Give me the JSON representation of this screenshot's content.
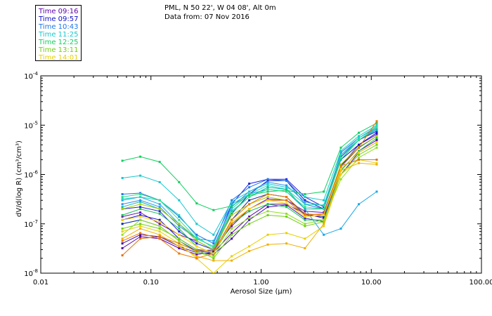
{
  "title": {
    "line1": "PML, N 50 22', W 04 08', Alt 0m",
    "line2": "Data from: 07 Nov 2016"
  },
  "legend": [
    {
      "label": "Time 09:16",
      "color": "#5b00a8"
    },
    {
      "label": "Time 09:57",
      "color": "#1010c8"
    },
    {
      "label": "Time 10:43",
      "color": "#1c78e8"
    },
    {
      "label": "Time 11:25",
      "color": "#18c8d0"
    },
    {
      "label": "Time 12:25",
      "color": "#10d060"
    },
    {
      "label": "Time 13:11",
      "color": "#70d010"
    },
    {
      "label": "Time 14:01",
      "color": "#e8d000"
    }
  ],
  "chart_data": {
    "type": "line",
    "x_scale": "log",
    "y_scale": "log",
    "xlabel": "Aerosol Size (µm)",
    "ylabel": "dV/d(log R) (cm³/cm³)",
    "xlim": [
      0.01,
      100
    ],
    "ylim": [
      1e-08,
      0.0001
    ],
    "x_ticks": [
      {
        "value": 0.01,
        "label": "0.01"
      },
      {
        "value": 0.1,
        "label": "0.10"
      },
      {
        "value": 1,
        "label": "1.00"
      },
      {
        "value": 10,
        "label": "10.00"
      },
      {
        "value": 100,
        "label": "100.00"
      }
    ],
    "y_ticks": [
      {
        "value": 1e-08,
        "base": "10",
        "exp": "-8"
      },
      {
        "value": 1e-07,
        "base": "10",
        "exp": "-7"
      },
      {
        "value": 1e-06,
        "base": "10",
        "exp": "-6"
      },
      {
        "value": 1e-05,
        "base": "10",
        "exp": "-5"
      },
      {
        "value": 0.0001,
        "base": "10",
        "exp": "-4"
      }
    ],
    "x": [
      0.055,
      0.08,
      0.12,
      0.18,
      0.26,
      0.37,
      0.54,
      0.78,
      1.15,
      1.7,
      2.5,
      3.7,
      5.3,
      7.7,
      11.2
    ],
    "series": [
      {
        "name": "Time 09:16",
        "color": "#5b00a8",
        "values": [
          3.2e-08,
          5.5e-08,
          5e-08,
          3.2e-08,
          2.4e-08,
          2.6e-08,
          6.5e-08,
          1.4e-07,
          2.5e-07,
          2.5e-07,
          1.6e-07,
          1.3e-07,
          1.2e-06,
          3e-06,
          5e-06
        ]
      },
      {
        "name": "Time 09:16",
        "color": "#6a10b8",
        "values": [
          1.4e-07,
          1.7e-07,
          1e-07,
          6e-08,
          4.5e-08,
          3e-08,
          9e-08,
          2e-07,
          3.2e-07,
          3e-07,
          1.8e-07,
          1.7e-07,
          1.5e-06,
          4e-06,
          6.5e-06
        ]
      },
      {
        "name": "Time 09:16",
        "color": "#4010b0",
        "values": [
          4e-08,
          6e-08,
          5.5e-08,
          3.5e-08,
          2.6e-08,
          2.4e-08,
          5e-08,
          1.2e-07,
          2.2e-07,
          2.4e-07,
          1.3e-07,
          1.1e-07,
          1e-06,
          2.8e-06,
          4.5e-06
        ]
      },
      {
        "name": "Time 09:57",
        "color": "#1010c8",
        "values": [
          1.2e-07,
          1.5e-07,
          1.2e-07,
          5e-08,
          3e-08,
          2.8e-08,
          1.6e-07,
          4e-07,
          7.5e-07,
          7.5e-07,
          3e-07,
          2e-07,
          2e-06,
          4e-06,
          7e-06
        ]
      },
      {
        "name": "Time 09:57",
        "color": "#2020e0",
        "values": [
          2e-07,
          2.2e-07,
          1.8e-07,
          7e-08,
          4e-08,
          3e-08,
          2.5e-07,
          6.5e-07,
          8e-07,
          8e-07,
          3.5e-07,
          2.2e-07,
          2.3e-06,
          5e-06,
          7.5e-06
        ]
      },
      {
        "name": "Time 09:57",
        "color": "#0828a8",
        "values": [
          1e-07,
          1.2e-07,
          9e-08,
          4.5e-08,
          2.8e-08,
          2.6e-08,
          1.2e-07,
          3e-07,
          4e-07,
          3.5e-07,
          1.5e-07,
          1.4e-07,
          1.5e-06,
          3.5e-06,
          6e-06
        ]
      },
      {
        "name": "Time 10:43",
        "color": "#1c78e8",
        "values": [
          4e-07,
          4.2e-07,
          3e-07,
          1.4e-07,
          6e-08,
          4e-08,
          3e-07,
          5.5e-07,
          8e-07,
          7.5e-07,
          2.5e-07,
          2e-07,
          2.8e-06,
          5.5e-06,
          9e-06
        ]
      },
      {
        "name": "Time 10:43",
        "color": "#3090f0",
        "values": [
          2.5e-07,
          3e-07,
          2.2e-07,
          9e-08,
          5e-08,
          3.5e-08,
          2.2e-07,
          4.5e-07,
          7e-07,
          6e-07,
          2.8e-07,
          2.3e-07,
          2.5e-06,
          5e-06,
          8.5e-06
        ]
      },
      {
        "name": "Time 10:43",
        "color": "#18a8e8",
        "values": [
          3e-07,
          3.5e-07,
          2.5e-07,
          1e-07,
          5e-08,
          4.5e-08,
          2.5e-07,
          4e-07,
          5e-07,
          4.5e-07,
          2e-07,
          6e-08,
          8e-08,
          2.5e-07,
          4.5e-07
        ]
      },
      {
        "name": "Time 11:25",
        "color": "#18c8d0",
        "values": [
          8.5e-07,
          9.5e-07,
          7e-07,
          3e-07,
          1e-07,
          6e-08,
          2.8e-07,
          4.5e-07,
          6.5e-07,
          5.5e-07,
          3.5e-07,
          3e-07,
          3e-06,
          6e-06,
          1e-05
        ]
      },
      {
        "name": "Time 11:25",
        "color": "#20d8c0",
        "values": [
          3.2e-07,
          3.5e-07,
          3e-07,
          1.5e-07,
          5.5e-08,
          3.2e-08,
          2e-07,
          4e-07,
          6e-07,
          5e-07,
          2.5e-07,
          2.4e-07,
          2.5e-06,
          5.5e-06,
          9.5e-06
        ]
      },
      {
        "name": "Time 11:25",
        "color": "#10b8b0",
        "values": [
          2.2e-07,
          2.8e-07,
          2e-07,
          1e-07,
          4.5e-08,
          3e-08,
          1.8e-07,
          3.5e-07,
          5.5e-07,
          5e-07,
          2e-07,
          2e-07,
          2e-06,
          5e-06,
          8e-06
        ]
      },
      {
        "name": "Time 12:25",
        "color": "#10d060",
        "values": [
          1.9e-06,
          2.3e-06,
          1.8e-06,
          7e-07,
          2.6e-07,
          1.9e-07,
          2.3e-07,
          3.8e-07,
          4.5e-07,
          4.8e-07,
          4e-07,
          4.5e-07,
          3.5e-06,
          7e-06,
          1.1e-05
        ]
      },
      {
        "name": "Time 12:25",
        "color": "#30e080",
        "values": [
          3.5e-07,
          4e-07,
          3e-07,
          1.2e-07,
          5e-08,
          3.5e-08,
          1.7e-07,
          3.5e-07,
          5e-07,
          4.5e-07,
          2.2e-07,
          2e-07,
          2.2e-06,
          5e-06,
          9e-06
        ]
      },
      {
        "name": "Time 12:25",
        "color": "#18c050",
        "values": [
          1.5e-07,
          2e-07,
          1.6e-07,
          8e-08,
          3.5e-08,
          2.5e-08,
          1e-07,
          1.8e-07,
          2.5e-07,
          2.2e-07,
          1.2e-07,
          1.2e-07,
          1.2e-06,
          3e-06,
          5.5e-06
        ]
      },
      {
        "name": "Time 13:11",
        "color": "#70d010",
        "values": [
          8e-08,
          1e-07,
          8e-08,
          5e-08,
          3e-08,
          2e-08,
          6e-08,
          1e-07,
          1.5e-07,
          1.4e-07,
          9e-08,
          1.1e-07,
          1e-06,
          2.5e-06,
          4e-06
        ]
      },
      {
        "name": "Time 13:11",
        "color": "#90e020",
        "values": [
          6e-08,
          1.2e-07,
          9e-08,
          4.5e-08,
          2.6e-08,
          2.2e-08,
          8e-08,
          1.3e-07,
          1.8e-07,
          1.6e-07,
          1e-07,
          1.2e-07,
          8e-07,
          2.2e-06,
          3.5e-06
        ]
      },
      {
        "name": "Time 13:11",
        "color": "#a8d000",
        "values": [
          2e-07,
          2.5e-07,
          2e-07,
          1e-07,
          4.5e-08,
          3e-08,
          1.5e-07,
          2.5e-07,
          3.5e-07,
          3e-07,
          1.5e-07,
          1.6e-07,
          1.6e-06,
          3.6e-06,
          6e-06
        ]
      },
      {
        "name": "Time 14:01",
        "color": "#e8d000",
        "values": [
          7e-08,
          9e-08,
          7e-08,
          4e-08,
          2e-08,
          1e-08,
          2.2e-08,
          3.5e-08,
          6e-08,
          6.5e-08,
          5e-08,
          9e-08,
          1e-06,
          2e-06,
          1.7e-06
        ]
      },
      {
        "name": "Time 14:01",
        "color": "#f0b000",
        "values": [
          5e-08,
          8e-08,
          6e-08,
          3.5e-08,
          2.2e-08,
          1.8e-08,
          1.8e-08,
          2.8e-08,
          3.8e-08,
          4e-08,
          3.2e-08,
          1e-07,
          1.2e-06,
          1.7e-06,
          1.6e-06
        ]
      },
      {
        "name": "Time 14:01",
        "color": "#e07010",
        "values": [
          2.3e-08,
          5e-08,
          5.5e-08,
          4e-08,
          2.8e-08,
          3e-08,
          1e-07,
          2e-07,
          3e-07,
          3e-07,
          1.5e-07,
          1.6e-07,
          1.5e-06,
          2e-06,
          2e-06
        ]
      },
      {
        "name": "Time 14:01",
        "color": "#f07800",
        "values": [
          4.5e-08,
          6.5e-08,
          5e-08,
          2.5e-08,
          2e-08,
          2.5e-08,
          1.2e-07,
          2.5e-07,
          4e-07,
          3.5e-07,
          1.6e-07,
          1.5e-07,
          1.4e-06,
          3.5e-06,
          1.2e-05
        ]
      },
      {
        "name": "Time 14:01",
        "color": "#ffd000",
        "values": [
          1.2e-07,
          1.4e-07,
          1.1e-07,
          6e-08,
          3.5e-08,
          2.5e-08,
          1.1e-07,
          2e-07,
          3e-07,
          2.6e-07,
          1.4e-07,
          1.5e-07,
          1.3e-06,
          2.8e-06,
          4.5e-06
        ]
      }
    ]
  }
}
